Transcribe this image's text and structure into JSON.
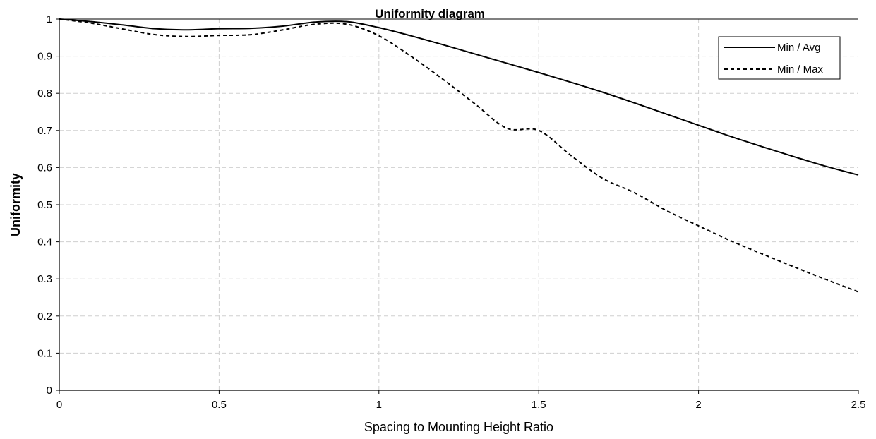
{
  "chart_data": {
    "type": "line",
    "title": "Uniformity diagram",
    "xlabel": "Spacing to Mounting Height Ratio",
    "ylabel": "Uniformity",
    "xlim": [
      0,
      2.5
    ],
    "ylim": [
      0,
      1
    ],
    "xticks": [
      0,
      0.5,
      1,
      1.5,
      2,
      2.5
    ],
    "xtick_labels": [
      "0",
      "0.5",
      "1",
      "1.5",
      "2",
      "2.5"
    ],
    "yticks": [
      0,
      0.1,
      0.2,
      0.3,
      0.4,
      0.5,
      0.6,
      0.7,
      0.8,
      0.9,
      1
    ],
    "ytick_labels": [
      "0",
      "0.1",
      "0.2",
      "0.3",
      "0.4",
      "0.5",
      "0.6",
      "0.7",
      "0.8",
      "0.9",
      "1"
    ],
    "grid": true,
    "legend_position": "top-right",
    "series": [
      {
        "name": "Min / Avg",
        "style": "solid",
        "color": "#000000",
        "x": [
          0,
          0.1,
          0.2,
          0.3,
          0.4,
          0.5,
          0.6,
          0.7,
          0.8,
          0.9,
          1.0,
          1.1,
          1.2,
          1.3,
          1.4,
          1.5,
          1.6,
          1.7,
          1.8,
          1.9,
          2.0,
          2.1,
          2.2,
          2.3,
          2.4,
          2.5
        ],
        "y": [
          1.0,
          0.993,
          0.984,
          0.974,
          0.971,
          0.974,
          0.975,
          0.981,
          0.992,
          0.993,
          0.977,
          0.955,
          0.931,
          0.906,
          0.881,
          0.856,
          0.83,
          0.803,
          0.774,
          0.744,
          0.714,
          0.684,
          0.656,
          0.629,
          0.603,
          0.58
        ]
      },
      {
        "name": "Min / Max",
        "style": "dashed",
        "color": "#000000",
        "x": [
          0,
          0.1,
          0.2,
          0.3,
          0.4,
          0.5,
          0.6,
          0.7,
          0.8,
          0.9,
          1.0,
          1.1,
          1.2,
          1.3,
          1.4,
          1.5,
          1.6,
          1.7,
          1.8,
          1.9,
          2.0,
          2.1,
          2.2,
          2.3,
          2.4,
          2.5
        ],
        "y": [
          1.0,
          0.989,
          0.973,
          0.958,
          0.953,
          0.956,
          0.958,
          0.971,
          0.986,
          0.986,
          0.955,
          0.9,
          0.838,
          0.772,
          0.706,
          0.7,
          0.633,
          0.571,
          0.532,
          0.484,
          0.443,
          0.403,
          0.367,
          0.332,
          0.298,
          0.265
        ]
      }
    ]
  }
}
